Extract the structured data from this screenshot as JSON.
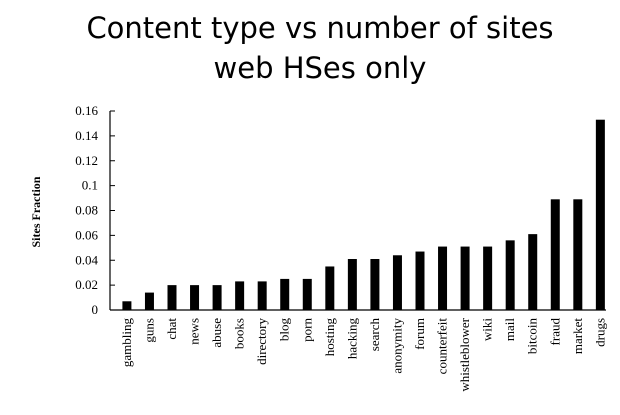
{
  "chart_data": {
    "type": "bar",
    "title": "Content type vs number of sites",
    "subtitle": "web HSes only",
    "y_label": "Sites Fraction",
    "categories": [
      "gambling",
      "guns",
      "chat",
      "news",
      "abuse",
      "books",
      "directory",
      "blog",
      "porn",
      "hosting",
      "hacking",
      "search",
      "anonymity",
      "forum",
      "counterfeit",
      "whistleblower",
      "wiki",
      "mail",
      "bitcoin",
      "fraud",
      "market",
      "drugs"
    ],
    "values": [
      0.007,
      0.014,
      0.02,
      0.02,
      0.02,
      0.023,
      0.023,
      0.025,
      0.025,
      0.035,
      0.041,
      0.041,
      0.044,
      0.047,
      0.051,
      0.051,
      0.051,
      0.056,
      0.061,
      0.089,
      0.089,
      0.153
    ],
    "color": "#000000",
    "ylim": [
      0,
      0.16
    ],
    "yticks": [
      0,
      0.02,
      0.04,
      0.06,
      0.08,
      0.1,
      0.12,
      0.14,
      0.16
    ]
  }
}
